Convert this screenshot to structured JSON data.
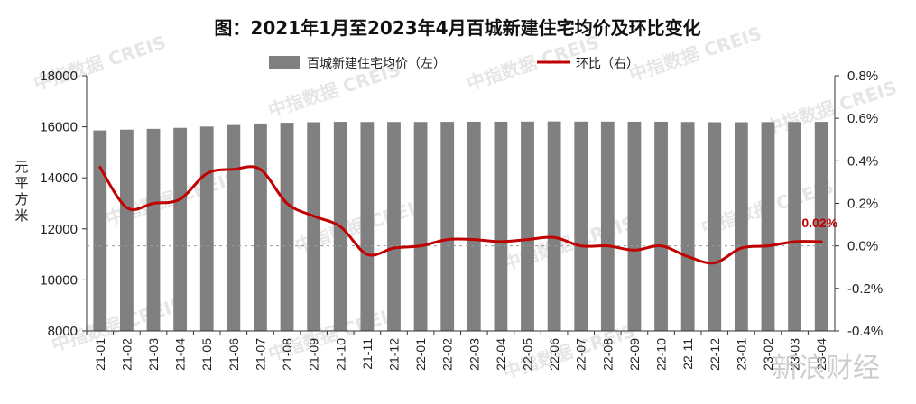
{
  "chart_data": {
    "type": "bar",
    "title": "图：2021年1月至2023年4月百城新建住宅均价及环比变化",
    "ylabel": "元平方米",
    "categories": [
      "21-01",
      "21-02",
      "21-03",
      "21-04",
      "21-05",
      "21-06",
      "21-07",
      "21-08",
      "21-09",
      "21-10",
      "21-11",
      "21-12",
      "22-01",
      "22-02",
      "22-03",
      "22-04",
      "22-05",
      "22-06",
      "22-07",
      "22-08",
      "22-09",
      "22-10",
      "22-11",
      "22-12",
      "23-01",
      "23-02",
      "23-03",
      "23-04"
    ],
    "ylim_left": [
      8000,
      18000
    ],
    "yticks_left": [
      "8000",
      "10000",
      "12000",
      "14000",
      "16000",
      "18000"
    ],
    "ylim_right": [
      -0.4,
      0.8
    ],
    "yticks_right": [
      "-0.4%",
      "-0.2%",
      "0.0%",
      "0.2%",
      "0.4%",
      "0.6%",
      "0.8%"
    ],
    "series": [
      {
        "name": "百城新建住宅均价（左）",
        "type": "bar",
        "axis": "left",
        "color": "#808080",
        "values": [
          15860,
          15890,
          15920,
          15960,
          16010,
          16070,
          16130,
          16160,
          16180,
          16195,
          16190,
          16190,
          16190,
          16195,
          16200,
          16200,
          16205,
          16210,
          16205,
          16205,
          16200,
          16200,
          16190,
          16180,
          16180,
          16185,
          16190,
          16195
        ]
      },
      {
        "name": "环比（右）",
        "type": "line",
        "axis": "right",
        "color": "#c00000",
        "values": [
          0.37,
          0.18,
          0.2,
          0.22,
          0.34,
          0.36,
          0.36,
          0.2,
          0.14,
          0.09,
          -0.04,
          -0.01,
          0.0,
          0.03,
          0.03,
          0.02,
          0.03,
          0.04,
          0.0,
          0.0,
          -0.02,
          0.0,
          -0.05,
          -0.08,
          -0.01,
          0.0,
          0.02,
          0.02
        ]
      }
    ],
    "annotation": {
      "text": "0.02%",
      "index": 27
    },
    "legend_position": "top",
    "grid": false,
    "zero_line": "dashed"
  },
  "watermark": {
    "text": "中指数据 CREIS",
    "brand": "新浪财经"
  }
}
